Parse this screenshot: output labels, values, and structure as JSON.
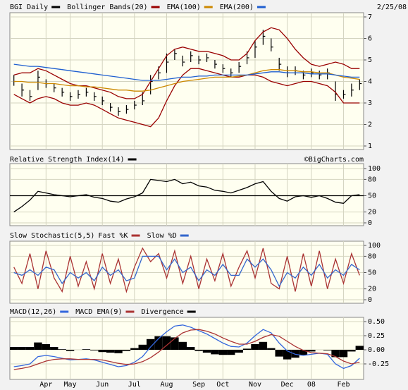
{
  "chart_data": [
    {
      "type": "ohlc",
      "ylim": [
        1,
        7
      ],
      "yticks": [
        1,
        2,
        3,
        4,
        5,
        6,
        7
      ],
      "grid": true,
      "date": "2/25/08",
      "series": [
        {
          "name": "BGI Daily",
          "color": "#000000",
          "values": [
            4.0,
            3.6,
            3.3,
            4.2,
            3.9,
            3.7,
            3.5,
            3.3,
            3.4,
            3.5,
            3.3,
            3.1,
            2.8,
            2.6,
            2.7,
            2.9,
            3.1,
            4.0,
            4.4,
            4.9,
            5.3,
            4.9,
            5.2,
            5.0,
            5.1,
            4.8,
            4.6,
            4.4,
            4.7,
            5.1,
            5.6,
            6.1,
            5.6,
            4.8,
            4.4,
            4.5,
            4.3,
            4.4,
            4.3,
            4.4,
            3.4,
            3.4,
            3.6,
            3.9
          ],
          "high": [
            4.3,
            3.9,
            3.6,
            4.5,
            4.1,
            3.9,
            3.7,
            3.5,
            3.6,
            3.7,
            3.5,
            3.3,
            3.0,
            2.8,
            2.9,
            3.1,
            3.5,
            4.3,
            4.7,
            5.3,
            5.5,
            5.2,
            5.4,
            5.2,
            5.3,
            5.0,
            4.8,
            4.6,
            4.9,
            5.4,
            5.9,
            6.4,
            6.0,
            5.1,
            4.7,
            4.7,
            4.5,
            4.6,
            4.5,
            4.6,
            4.0,
            3.6,
            3.9,
            4.1
          ],
          "low": [
            3.8,
            3.3,
            3.1,
            3.6,
            3.7,
            3.5,
            3.3,
            3.1,
            3.2,
            3.3,
            3.1,
            2.9,
            2.6,
            2.4,
            2.5,
            2.7,
            2.9,
            3.4,
            4.1,
            4.4,
            5.0,
            4.7,
            4.9,
            4.8,
            4.9,
            4.6,
            4.4,
            4.2,
            4.4,
            4.8,
            5.1,
            5.7,
            5.4,
            4.5,
            4.2,
            4.3,
            4.1,
            4.2,
            4.1,
            4.1,
            3.1,
            3.2,
            3.3,
            3.6
          ]
        },
        {
          "name": "Bollinger Bands(20)",
          "color": "#990000",
          "upper": [
            4.3,
            4.4,
            4.4,
            4.6,
            4.5,
            4.3,
            4.1,
            3.9,
            3.8,
            3.8,
            3.7,
            3.6,
            3.5,
            3.3,
            3.2,
            3.2,
            3.4,
            4.0,
            4.6,
            5.2,
            5.5,
            5.6,
            5.5,
            5.4,
            5.4,
            5.3,
            5.2,
            5.0,
            5.0,
            5.3,
            5.9,
            6.3,
            6.5,
            6.4,
            6.0,
            5.5,
            5.1,
            4.8,
            4.7,
            4.8,
            4.9,
            4.8,
            4.6,
            4.6
          ],
          "lower": [
            3.4,
            3.2,
            3.0,
            3.2,
            3.3,
            3.2,
            3.0,
            2.9,
            2.9,
            3.0,
            2.9,
            2.7,
            2.5,
            2.3,
            2.2,
            2.1,
            2.0,
            1.9,
            2.3,
            3.1,
            3.8,
            4.3,
            4.6,
            4.6,
            4.5,
            4.4,
            4.3,
            4.2,
            4.2,
            4.3,
            4.3,
            4.2,
            4.0,
            3.9,
            3.8,
            3.9,
            4.0,
            4.0,
            3.9,
            3.8,
            3.5,
            3.0,
            3.0,
            3.0
          ]
        },
        {
          "name": "EMA(100)",
          "color": "#cc8800",
          "values": [
            4.0,
            4.0,
            3.95,
            3.95,
            3.9,
            3.9,
            3.85,
            3.8,
            3.8,
            3.75,
            3.75,
            3.7,
            3.65,
            3.6,
            3.6,
            3.55,
            3.55,
            3.6,
            3.7,
            3.8,
            3.9,
            4.0,
            4.05,
            4.1,
            4.15,
            4.2,
            4.2,
            4.2,
            4.25,
            4.3,
            4.4,
            4.5,
            4.55,
            4.55,
            4.5,
            4.5,
            4.45,
            4.45,
            4.4,
            4.4,
            4.3,
            4.2,
            4.15,
            4.1
          ]
        },
        {
          "name": "EMA(200)",
          "color": "#1f5fd0",
          "values": [
            4.8,
            4.75,
            4.7,
            4.7,
            4.65,
            4.6,
            4.55,
            4.5,
            4.45,
            4.4,
            4.35,
            4.3,
            4.25,
            4.2,
            4.15,
            4.1,
            4.05,
            4.05,
            4.05,
            4.1,
            4.15,
            4.2,
            4.2,
            4.25,
            4.25,
            4.3,
            4.3,
            4.3,
            4.3,
            4.3,
            4.35,
            4.4,
            4.45,
            4.45,
            4.4,
            4.4,
            4.4,
            4.35,
            4.35,
            4.35,
            4.3,
            4.25,
            4.2,
            4.2
          ]
        }
      ]
    },
    {
      "type": "line",
      "ylim": [
        0,
        100
      ],
      "yticks": [
        0,
        20,
        50,
        80,
        100
      ],
      "grid": true,
      "reference_line": 50,
      "watermark": "©BigCharts.com",
      "series": [
        {
          "name": "Relative Strength Index(14)",
          "color": "#000000",
          "values": [
            20,
            30,
            42,
            58,
            55,
            52,
            50,
            48,
            50,
            52,
            47,
            45,
            40,
            38,
            44,
            48,
            55,
            80,
            78,
            76,
            80,
            72,
            75,
            68,
            66,
            60,
            58,
            55,
            60,
            65,
            72,
            76,
            58,
            45,
            40,
            48,
            50,
            47,
            50,
            45,
            38,
            36,
            50,
            52
          ]
        }
      ]
    },
    {
      "type": "line",
      "title": "Slow Stochastic(5,5)",
      "ylim": [
        0,
        100
      ],
      "yticks": [
        0,
        20,
        50,
        80,
        100
      ],
      "grid": true,
      "series": [
        {
          "name": "Fast %K",
          "color": "#aa3333",
          "values": [
            60,
            30,
            85,
            20,
            90,
            40,
            15,
            80,
            25,
            70,
            20,
            85,
            30,
            75,
            15,
            60,
            95,
            70,
            85,
            40,
            90,
            30,
            80,
            20,
            75,
            35,
            85,
            25,
            60,
            90,
            40,
            95,
            30,
            20,
            80,
            15,
            85,
            25,
            90,
            20,
            75,
            30,
            85,
            45
          ]
        },
        {
          "name": "Slow %D",
          "color": "#3366cc",
          "values": [
            50,
            45,
            55,
            45,
            60,
            55,
            30,
            50,
            40,
            50,
            35,
            60,
            45,
            55,
            35,
            40,
            80,
            80,
            80,
            55,
            75,
            50,
            60,
            35,
            55,
            45,
            65,
            45,
            45,
            75,
            60,
            75,
            55,
            25,
            50,
            40,
            60,
            45,
            65,
            40,
            55,
            45,
            65,
            55
          ]
        }
      ]
    },
    {
      "type": "line",
      "ylim": [
        -0.5,
        0.5
      ],
      "yticks": [
        {
          "value": -0.25,
          "label": "-0.25"
        },
        {
          "value": 0,
          "label": "0.00"
        },
        {
          "value": 0.25,
          "label": "0.25"
        },
        {
          "value": 0.5,
          "label": "0.50"
        }
      ],
      "grid": true,
      "categories": [
        null,
        null,
        null,
        null,
        "Apr",
        null,
        null,
        "May",
        null,
        null,
        null,
        "Jun",
        null,
        null,
        null,
        "Jul",
        null,
        null,
        null,
        "Aug",
        null,
        null,
        null,
        "Sep",
        null,
        null,
        "Oct",
        null,
        null,
        null,
        "Nov",
        null,
        null,
        null,
        "Dec",
        null,
        null,
        "08",
        null,
        null,
        null,
        "Feb",
        null,
        null
      ],
      "series": [
        {
          "name": "MACD(12,26)",
          "color": "#3366dd",
          "values": [
            -0.3,
            -0.28,
            -0.25,
            -0.12,
            -0.1,
            -0.12,
            -0.15,
            -0.18,
            -0.17,
            -0.16,
            -0.18,
            -0.22,
            -0.26,
            -0.3,
            -0.28,
            -0.22,
            -0.12,
            0.05,
            0.2,
            0.32,
            0.42,
            0.44,
            0.4,
            0.34,
            0.28,
            0.2,
            0.12,
            0.06,
            0.05,
            0.12,
            0.25,
            0.36,
            0.3,
            0.12,
            -0.02,
            -0.08,
            -0.1,
            -0.08,
            -0.06,
            -0.08,
            -0.25,
            -0.33,
            -0.28,
            -0.15
          ]
        },
        {
          "name": "MACD EMA(9)",
          "color": "#aa3333",
          "values": [
            -0.35,
            -0.33,
            -0.3,
            -0.25,
            -0.2,
            -0.17,
            -0.16,
            -0.16,
            -0.17,
            -0.17,
            -0.17,
            -0.18,
            -0.21,
            -0.24,
            -0.26,
            -0.25,
            -0.21,
            -0.14,
            -0.04,
            0.08,
            0.2,
            0.3,
            0.35,
            0.36,
            0.33,
            0.28,
            0.21,
            0.15,
            0.1,
            0.1,
            0.15,
            0.22,
            0.27,
            0.24,
            0.15,
            0.06,
            -0.01,
            -0.05,
            -0.06,
            -0.07,
            -0.12,
            -0.2,
            -0.25,
            -0.22
          ]
        },
        {
          "name": "Divergence",
          "color": "#000000",
          "style": "histogram",
          "values": [
            0.05,
            0.05,
            0.05,
            0.13,
            0.1,
            0.05,
            0.01,
            -0.02,
            0.0,
            0.01,
            -0.01,
            -0.04,
            -0.05,
            -0.06,
            -0.02,
            0.03,
            0.09,
            0.19,
            0.24,
            0.24,
            0.22,
            0.14,
            0.05,
            -0.02,
            -0.05,
            -0.08,
            -0.09,
            -0.09,
            -0.05,
            0.02,
            0.1,
            0.14,
            0.03,
            -0.12,
            -0.17,
            -0.14,
            -0.09,
            -0.03,
            0.0,
            -0.01,
            -0.13,
            -0.13,
            -0.03,
            0.07
          ]
        }
      ]
    }
  ]
}
